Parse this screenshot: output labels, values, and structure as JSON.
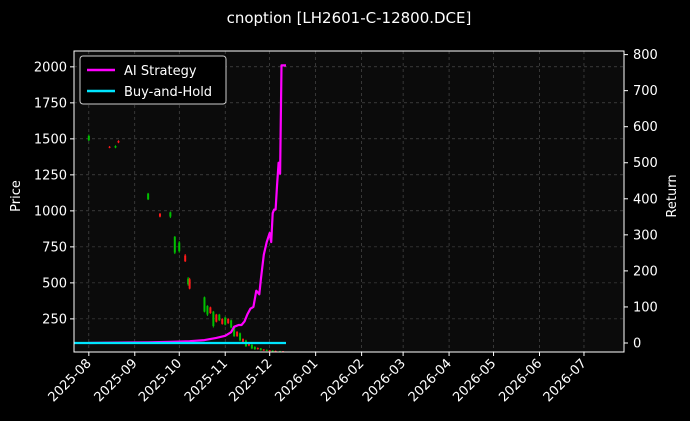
{
  "chart_data": {
    "type": "line",
    "title": "cnoption [LH2601-C-12800.DCE]",
    "xlabel": "",
    "ylabel_left": "Price",
    "ylabel_right": "Return",
    "x_range": [
      "2025-07-22",
      "2026-07-28"
    ],
    "ylim_left": [
      20,
      2110
    ],
    "ylim_right": [
      -25,
      810
    ],
    "yticks_left": [
      250,
      500,
      750,
      1000,
      1250,
      1500,
      1750,
      2000
    ],
    "yticks_right": [
      0,
      100,
      200,
      300,
      400,
      500,
      600,
      700,
      800
    ],
    "xticks": [
      {
        "date": "2025-08-01",
        "label": "2025-08"
      },
      {
        "date": "2025-09-01",
        "label": "2025-09"
      },
      {
        "date": "2025-10-01",
        "label": "2025-10"
      },
      {
        "date": "2025-11-01",
        "label": "2025-11"
      },
      {
        "date": "2025-12-01",
        "label": "2025-12"
      },
      {
        "date": "2026-01-01",
        "label": "2026-01"
      },
      {
        "date": "2026-02-01",
        "label": "2026-02"
      },
      {
        "date": "2026-03-01",
        "label": "2026-03"
      },
      {
        "date": "2026-04-01",
        "label": "2026-04"
      },
      {
        "date": "2026-05-01",
        "label": "2026-05"
      },
      {
        "date": "2026-06-01",
        "label": "2026-06"
      },
      {
        "date": "2026-07-01",
        "label": "2026-07"
      }
    ],
    "grid": true,
    "legend_position": "top-left",
    "series": [
      {
        "name": "AI Strategy",
        "axis": "right",
        "color": "#ff00ff",
        "points": [
          [
            "2025-08-01",
            0
          ],
          [
            "2025-08-20",
            1
          ],
          [
            "2025-09-10",
            2
          ],
          [
            "2025-09-25",
            3
          ],
          [
            "2025-10-08",
            5
          ],
          [
            "2025-10-18",
            8
          ],
          [
            "2025-10-26",
            14
          ],
          [
            "2025-11-01",
            20
          ],
          [
            "2025-11-05",
            30
          ],
          [
            "2025-11-07",
            45
          ],
          [
            "2025-11-10",
            50
          ],
          [
            "2025-11-12",
            50
          ],
          [
            "2025-11-14",
            60
          ],
          [
            "2025-11-16",
            80
          ],
          [
            "2025-11-18",
            95
          ],
          [
            "2025-11-20",
            100
          ],
          [
            "2025-11-22",
            145
          ],
          [
            "2025-11-24",
            135
          ],
          [
            "2025-11-25",
            175
          ],
          [
            "2025-11-26",
            210
          ],
          [
            "2025-11-27",
            245
          ],
          [
            "2025-11-29",
            280
          ],
          [
            "2025-12-01",
            305
          ],
          [
            "2025-12-02",
            280
          ],
          [
            "2025-12-03",
            360
          ],
          [
            "2025-12-04",
            370
          ],
          [
            "2025-12-05",
            370
          ],
          [
            "2025-12-06",
            440
          ],
          [
            "2025-12-07",
            500
          ],
          [
            "2025-12-08",
            470
          ],
          [
            "2025-12-09",
            770
          ],
          [
            "2025-12-12",
            770
          ]
        ]
      },
      {
        "name": "Buy-and-Hold",
        "axis": "right",
        "color": "#00e5ff",
        "points": [
          [
            "2025-07-22",
            0
          ],
          [
            "2025-12-12",
            0
          ]
        ]
      }
    ],
    "candles": [
      {
        "date": "2025-08-01",
        "open": 1490,
        "close": 1520,
        "high": 1530,
        "low": 1485
      },
      {
        "date": "2025-08-15",
        "open": 1445,
        "close": 1440,
        "high": 1450,
        "low": 1435
      },
      {
        "date": "2025-08-19",
        "open": 1440,
        "close": 1450,
        "high": 1455,
        "low": 1435
      },
      {
        "date": "2025-08-21",
        "open": 1485,
        "close": 1475,
        "high": 1490,
        "low": 1470
      },
      {
        "date": "2025-09-10",
        "open": 1080,
        "close": 1120,
        "high": 1125,
        "low": 1075
      },
      {
        "date": "2025-09-18",
        "open": 980,
        "close": 960,
        "high": 985,
        "low": 955
      },
      {
        "date": "2025-09-25",
        "open": 960,
        "close": 990,
        "high": 995,
        "low": 950
      },
      {
        "date": "2025-09-28",
        "open": 710,
        "close": 820,
        "high": 825,
        "low": 700
      },
      {
        "date": "2025-10-01",
        "open": 720,
        "close": 780,
        "high": 790,
        "low": 710
      },
      {
        "date": "2025-10-05",
        "open": 690,
        "close": 650,
        "high": 700,
        "low": 645
      },
      {
        "date": "2025-10-07",
        "open": 490,
        "close": 530,
        "high": 540,
        "low": 480
      },
      {
        "date": "2025-10-08",
        "open": 525,
        "close": 460,
        "high": 535,
        "low": 455
      },
      {
        "date": "2025-10-18",
        "open": 300,
        "close": 400,
        "high": 405,
        "low": 295
      },
      {
        "date": "2025-10-20",
        "open": 280,
        "close": 340,
        "high": 345,
        "low": 270
      },
      {
        "date": "2025-10-22",
        "open": 330,
        "close": 290,
        "high": 335,
        "low": 285
      },
      {
        "date": "2025-10-24",
        "open": 200,
        "close": 300,
        "high": 305,
        "low": 190
      },
      {
        "date": "2025-10-26",
        "open": 280,
        "close": 230,
        "high": 285,
        "low": 225
      },
      {
        "date": "2025-10-28",
        "open": 240,
        "close": 280,
        "high": 285,
        "low": 235
      },
      {
        "date": "2025-10-30",
        "open": 250,
        "close": 215,
        "high": 255,
        "low": 210
      },
      {
        "date": "2025-11-01",
        "open": 210,
        "close": 260,
        "high": 265,
        "low": 205
      },
      {
        "date": "2025-11-03",
        "open": 250,
        "close": 220,
        "high": 255,
        "low": 215
      },
      {
        "date": "2025-11-05",
        "open": 190,
        "close": 240,
        "high": 245,
        "low": 185
      },
      {
        "date": "2025-11-07",
        "open": 130,
        "close": 200,
        "high": 205,
        "low": 125
      },
      {
        "date": "2025-11-09",
        "open": 160,
        "close": 130,
        "high": 165,
        "low": 125
      },
      {
        "date": "2025-11-11",
        "open": 100,
        "close": 150,
        "high": 155,
        "low": 95
      },
      {
        "date": "2025-11-13",
        "open": 110,
        "close": 90,
        "high": 115,
        "low": 85
      },
      {
        "date": "2025-11-15",
        "open": 60,
        "close": 100,
        "high": 105,
        "low": 55
      },
      {
        "date": "2025-11-17",
        "open": 80,
        "close": 65,
        "high": 85,
        "low": 60
      },
      {
        "date": "2025-11-19",
        "open": 45,
        "close": 70,
        "high": 75,
        "low": 40
      },
      {
        "date": "2025-11-21",
        "open": 40,
        "close": 55,
        "high": 60,
        "low": 35
      },
      {
        "date": "2025-11-23",
        "open": 48,
        "close": 40,
        "high": 52,
        "low": 36
      },
      {
        "date": "2025-11-25",
        "open": 32,
        "close": 45,
        "high": 48,
        "low": 30
      },
      {
        "date": "2025-11-27",
        "open": 38,
        "close": 30,
        "high": 40,
        "low": 28
      },
      {
        "date": "2025-11-29",
        "open": 28,
        "close": 35,
        "high": 38,
        "low": 26
      },
      {
        "date": "2025-12-01",
        "open": 32,
        "close": 26,
        "high": 34,
        "low": 24
      },
      {
        "date": "2025-12-03",
        "open": 25,
        "close": 30,
        "high": 32,
        "low": 23
      },
      {
        "date": "2025-12-05",
        "open": 28,
        "close": 24,
        "high": 30,
        "low": 22
      },
      {
        "date": "2025-12-08",
        "open": 23,
        "close": 26,
        "high": 28,
        "low": 22
      },
      {
        "date": "2025-12-10",
        "open": 26,
        "close": 23,
        "high": 27,
        "low": 22
      }
    ]
  },
  "colors": {
    "background": "#000000",
    "axes_face": "#0b0b0b",
    "grid": "#555555",
    "candle_up": "#00c000",
    "candle_down": "#ff1a1a",
    "text": "#ffffff"
  }
}
